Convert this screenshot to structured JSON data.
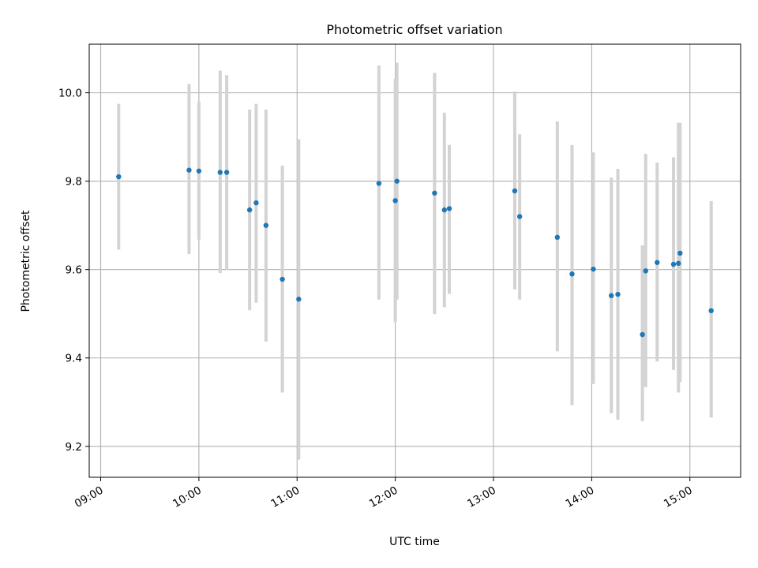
{
  "chart_data": {
    "type": "scatter",
    "title": "Photometric offset variation",
    "xlabel": "UTC time",
    "ylabel": "Photometric offset",
    "x_axis_kind": "time",
    "xlim": [
      "08:53",
      "15:31"
    ],
    "ylim": [
      9.13,
      10.11
    ],
    "x_ticks": [
      "09:00",
      "10:00",
      "11:00",
      "12:00",
      "13:00",
      "14:00",
      "15:00"
    ],
    "y_ticks": [
      9.2,
      9.4,
      9.6,
      9.8,
      10.0
    ],
    "y_tick_labels": [
      "9.2",
      "9.4",
      "9.6",
      "9.8",
      "10.0"
    ],
    "grid": true,
    "legend": "none",
    "colors": {
      "points": "#1f77b4",
      "error_bars": "#d3d3d3",
      "grid": "#b0b0b0"
    },
    "series": [
      {
        "x": [
          "09:11",
          "09:54",
          "10:00",
          "10:13",
          "10:17",
          "10:31",
          "10:35",
          "10:41",
          "10:51",
          "11:01",
          "11:50",
          "12:00",
          "12:01",
          "12:24",
          "12:30",
          "12:33",
          "13:13",
          "13:16",
          "13:39",
          "13:48",
          "14:01",
          "14:12",
          "14:16",
          "14:31",
          "14:33",
          "14:40",
          "14:50",
          "14:53",
          "14:54",
          "15:13"
        ],
        "y": [
          9.81,
          9.825,
          9.823,
          9.82,
          9.82,
          9.735,
          9.751,
          9.7,
          9.578,
          9.533,
          9.795,
          9.756,
          9.8,
          9.773,
          9.735,
          9.738,
          9.778,
          9.72,
          9.673,
          9.59,
          9.601,
          9.541,
          9.544,
          9.453,
          9.597,
          9.616,
          9.612,
          9.614,
          9.637,
          9.507
        ],
        "yerr_low": [
          9.645,
          9.635,
          9.668,
          9.592,
          9.6,
          9.508,
          9.525,
          9.437,
          9.322,
          9.17,
          9.532,
          9.482,
          9.532,
          9.499,
          9.515,
          9.545,
          9.555,
          9.532,
          9.415,
          9.293,
          9.341,
          9.275,
          9.26,
          9.257,
          9.334,
          9.392,
          9.373,
          9.322,
          9.345,
          9.265
        ],
        "yerr_high": [
          9.975,
          10.02,
          9.98,
          10.05,
          10.04,
          9.962,
          9.975,
          9.962,
          9.835,
          9.895,
          10.062,
          10.032,
          10.068,
          10.045,
          9.955,
          9.882,
          10.003,
          9.906,
          9.935,
          9.882,
          9.865,
          9.808,
          9.828,
          9.655,
          9.862,
          9.842,
          9.854,
          9.932,
          9.932,
          9.755
        ]
      }
    ]
  }
}
